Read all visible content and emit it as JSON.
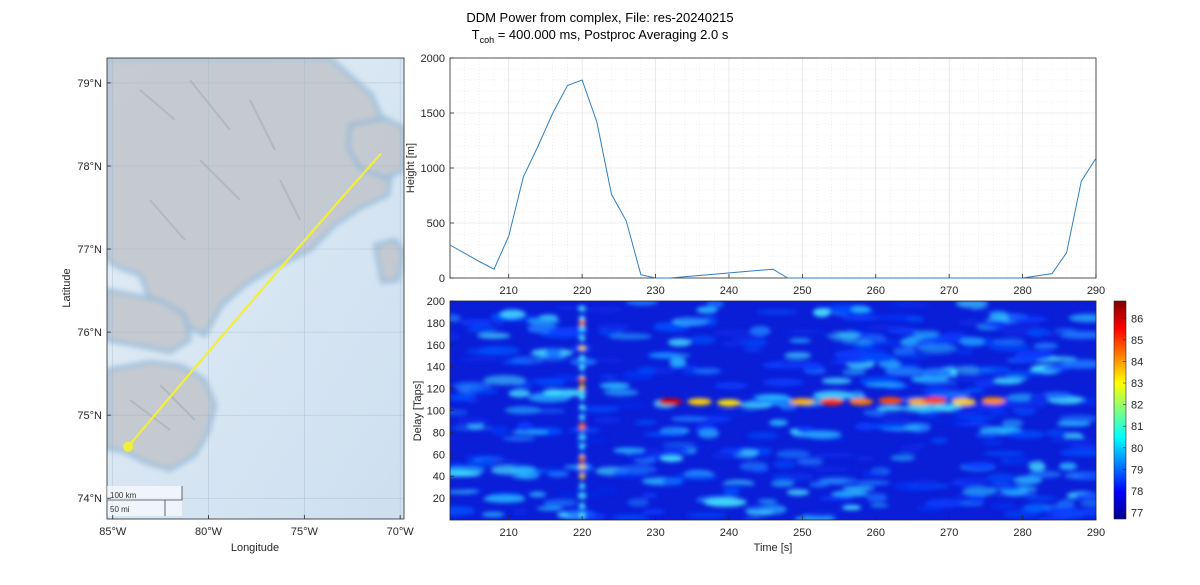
{
  "figure": {
    "title_line1": "DDM Power from complex, File: res-20240215",
    "title_line2_prefix": "T",
    "title_line2_sub": "coh",
    "title_line2_rest": " = 400.000 ms, Postproc Averaging 2.0 s"
  },
  "colors": {
    "land": "#b9bec6",
    "sea": "#d6e5f1",
    "coast": "#7fb1d6",
    "track": "#f2ef3a",
    "line": "#2f7fc1",
    "grid": "#dcdcdc",
    "axis": "#262626"
  },
  "chart_data": [
    {
      "type": "map",
      "xlabel": "Longitude",
      "ylabel": "Latitude",
      "xticks": [
        "85°W",
        "80°W",
        "75°W",
        "70°W"
      ],
      "xtick_values": [
        -85,
        -80,
        -75,
        -70
      ],
      "yticks": [
        "79°N",
        "78°N",
        "77°N",
        "76°N",
        "75°N",
        "74°N"
      ],
      "ytick_values": [
        79,
        78,
        77,
        76,
        75,
        74
      ],
      "xlim": [
        -85.3,
        -69.8
      ],
      "ylim": [
        73.75,
        79.3
      ],
      "grid": true,
      "track": {
        "start": {
          "lon": -84.2,
          "lat": 74.62
        },
        "end": {
          "lon": -71.0,
          "lat": 78.15
        }
      },
      "scalebar": {
        "km_label": "100 km",
        "mi_label": "50 mi"
      }
    },
    {
      "type": "line",
      "ylabel": "Height [m]",
      "xlim": [
        202,
        290
      ],
      "ylim": [
        0,
        2000
      ],
      "xticks": [
        210,
        220,
        230,
        240,
        250,
        260,
        270,
        280,
        290
      ],
      "yticks": [
        0,
        500,
        1000,
        1500,
        2000
      ],
      "grid": true,
      "series": [
        {
          "x": [
            202,
            206,
            208,
            210,
            212,
            214,
            216,
            218,
            220,
            222,
            224,
            226,
            228,
            230,
            232,
            246,
            248,
            250,
            280,
            284,
            286,
            288,
            290
          ],
          "values": [
            300,
            150,
            80,
            380,
            920,
            1200,
            1500,
            1750,
            1800,
            1420,
            760,
            520,
            30,
            0,
            0,
            80,
            0,
            0,
            0,
            40,
            230,
            880,
            1090
          ]
        }
      ]
    },
    {
      "type": "heatmap",
      "xlabel": "Time [s]",
      "ylabel": "Delay [Taps]",
      "xlim": [
        202,
        290
      ],
      "ylim": [
        0,
        200
      ],
      "xticks": [
        210,
        220,
        230,
        240,
        250,
        260,
        270,
        280,
        290
      ],
      "yticks": [
        20,
        40,
        60,
        80,
        100,
        120,
        140,
        160,
        180,
        200
      ],
      "colorbar": {
        "ticks": [
          77,
          78,
          79,
          80,
          81,
          82,
          83,
          84,
          85,
          86
        ],
        "range": [
          76.7,
          86.8
        ]
      }
    }
  ]
}
